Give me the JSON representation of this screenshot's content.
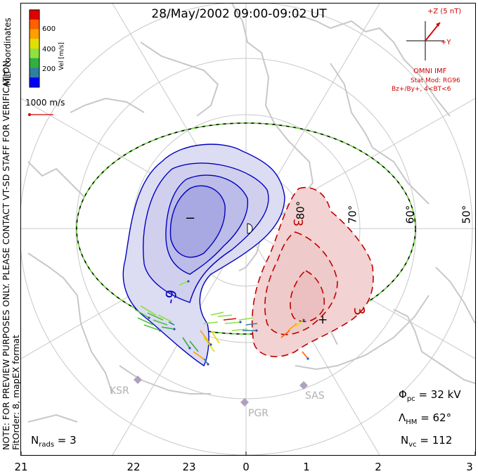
{
  "title": "28/May/2002 09:00-09:02 UT",
  "side_note": {
    "line1": "NOTE: FOR PREVIEW PURPOSES ONLY. PLEASE CONTACT VT-SD STAFF FOR VERIFICATION.",
    "line2": "FitOrder: 8, mapEX format"
  },
  "mlt_coordinates_label": "MLT coordinates",
  "colorbar": {
    "label": "Vel [m/s]",
    "ticks": [
      "600",
      "400",
      "200"
    ],
    "colors": [
      "#e00000",
      "#ff6000",
      "#ffa000",
      "#e0e000",
      "#90e040",
      "#30b040",
      "#2f7f9f",
      "#0000ff"
    ]
  },
  "velocity_scale": {
    "label": "1000 m/s",
    "color": "#d00000"
  },
  "imf": {
    "bz_label": "+Z (5 nT)",
    "by_label": "+Y",
    "source": "OMNI IMF",
    "model": "Stat Mod: RG96",
    "condition": "Bz+/By+, 4<BT<6",
    "color": "#d00000"
  },
  "latitude_labels": [
    "80°",
    "70°",
    "60°",
    "50°"
  ],
  "contour_labels": {
    "negative": "-9",
    "positive": "3"
  },
  "potential_markers": {
    "min": "−",
    "max": "+"
  },
  "mlt_axis": [
    "21",
    "22",
    "23",
    "0",
    "1",
    "2",
    "3"
  ],
  "stations": [
    "KSR",
    "PGR",
    "SAS"
  ],
  "stats": {
    "phi_pc": {
      "symbol": "Φ",
      "sub": "pc",
      "value": " = 32 kV"
    },
    "lambda_hm": {
      "symbol": "Λ",
      "sub": "HM",
      "value": " = 62°"
    },
    "n_vc": {
      "symbol": "N",
      "sub": "vc",
      "value": " = 112"
    },
    "n_rads": {
      "symbol": "N",
      "sub": "rads",
      "value": " = 3"
    }
  },
  "convection": {
    "negative_cell": {
      "min_potential_kv": -9,
      "contour_step_kv": 3,
      "fill": "#c8c8ec"
    },
    "positive_cell": {
      "max_potential_kv": 3,
      "contour_step_kv": 3,
      "fill": "#f2d2d2"
    }
  },
  "colors": {
    "negative": "#0000c0",
    "positive": "#c00000",
    "coastline": "#c8c8c8",
    "grid": "#c8c8c8"
  }
}
